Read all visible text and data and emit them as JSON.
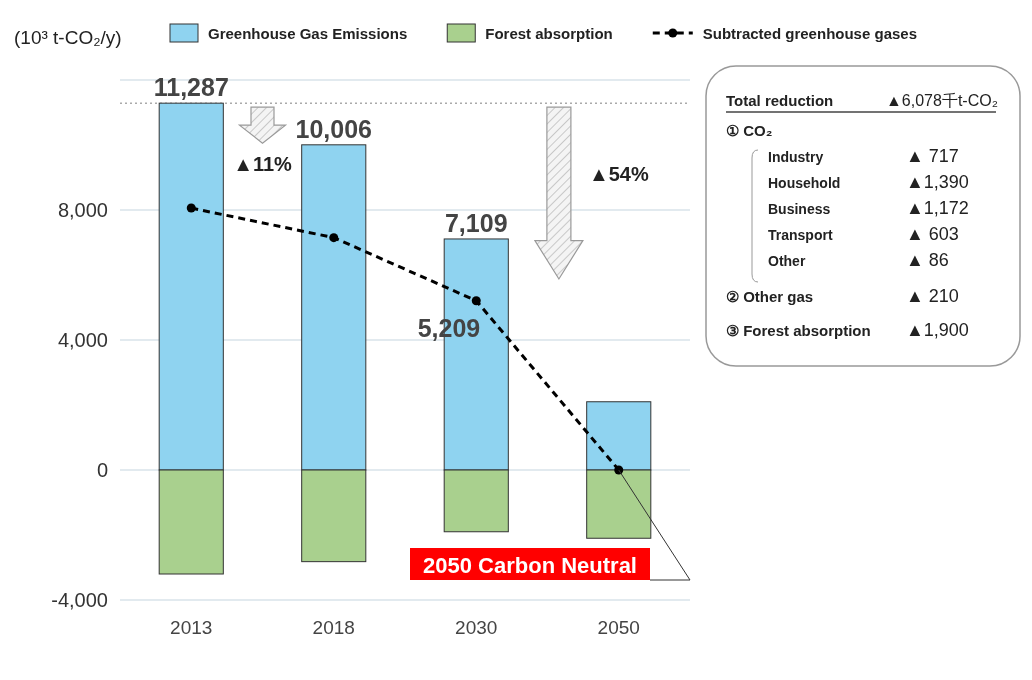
{
  "chart_data": {
    "type": "bar",
    "stacked": true,
    "ylabel": "(10³ t-CO₂/y)",
    "categories": [
      "2013",
      "2018",
      "2030",
      "2050"
    ],
    "series": [
      {
        "name": "Greenhouse Gas Emissions",
        "color": "#8fd3f0",
        "values": [
          11287,
          10006,
          7109,
          2100
        ],
        "value_labels": [
          "11,287",
          "10,006",
          "7,109",
          null
        ]
      },
      {
        "name": "Forest absorption",
        "color": "#a9d08e",
        "values": [
          -3200,
          -2820,
          -1900,
          -2100
        ]
      },
      {
        "name": "Subtracted greenhouse gases",
        "type": "line",
        "color": "#000000",
        "values": [
          8060,
          7150,
          5209,
          0
        ],
        "value_labels": [
          null,
          null,
          "5,209",
          null
        ]
      }
    ],
    "marker": "circle",
    "line_style": "dashed",
    "ylim": [
      -4000,
      12000
    ],
    "yticks": [
      {
        "value": -4000,
        "label": "-4,000"
      },
      0,
      {
        "value": 4000,
        "label": "4,000"
      },
      {
        "value": 8000,
        "label": "8,000"
      },
      {
        "value": 12000,
        "label": null
      }
    ],
    "grid": "y",
    "legend": "top",
    "ref_lines": [
      {
        "axis": "y",
        "value": 11287,
        "color": "#aaaaaa",
        "line_style": "dotted"
      }
    ],
    "annotations": [
      "▲11%",
      "▲54%",
      "Total reduction",
      "▲6,078千t-CO₂",
      "① CO₂",
      "Industry",
      "▲ 717",
      "Household",
      "▲1,390",
      "Business",
      "▲1,172",
      "Transport",
      "▲ 603",
      "Other",
      "▲ 86",
      "② Other gas",
      "▲ 210",
      "③ Forest absorption",
      "▲1,900",
      {
        "text": "2050 Carbon Neutral",
        "x": "2050",
        "y": 0
      }
    ]
  }
}
